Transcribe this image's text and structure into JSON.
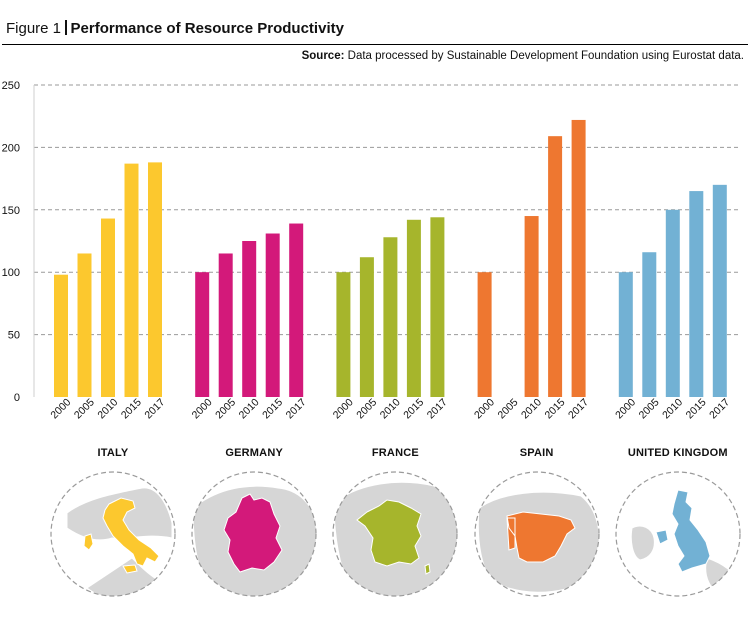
{
  "figure": {
    "label": "Figure 1",
    "title": "Performance of Resource Productivity",
    "source_label": "Source:",
    "source_text": "Data processed by Sustainable Development Foundation using Eurostat data."
  },
  "chart_data": {
    "type": "bar",
    "ylim": [
      0,
      250
    ],
    "yticks": [
      0,
      50,
      100,
      150,
      200,
      250
    ],
    "grid": true,
    "xlabel": "",
    "ylabel": "",
    "groups": [
      {
        "name": "ITALY",
        "color": "#FCC82E",
        "categories": [
          "2000",
          "2005",
          "2010",
          "2015",
          "2017"
        ],
        "values": [
          98,
          115,
          143,
          187,
          188
        ]
      },
      {
        "name": "GERMANY",
        "color": "#D3197A",
        "categories": [
          "2000",
          "2005",
          "2010",
          "2015",
          "2017"
        ],
        "values": [
          100,
          115,
          125,
          131,
          139
        ]
      },
      {
        "name": "FRANCE",
        "color": "#A6B52C",
        "categories": [
          "2000",
          "2005",
          "2010",
          "2015",
          "2017"
        ],
        "values": [
          100,
          112,
          128,
          142,
          144
        ]
      },
      {
        "name": "SPAIN",
        "color": "#EE7730",
        "categories": [
          "2000",
          "2005",
          "2010",
          "2015",
          "2017"
        ],
        "values": [
          100,
          null,
          145,
          209,
          222
        ]
      },
      {
        "name": "UNITED KINGDOM",
        "color": "#72B1D4",
        "categories": [
          "2000",
          "2005",
          "2010",
          "2015",
          "2017"
        ],
        "values": [
          100,
          116,
          150,
          165,
          170
        ]
      }
    ]
  },
  "maps": [
    {
      "name": "ITALY",
      "icon": "italy-map-icon",
      "color": "#FCC82E"
    },
    {
      "name": "GERMANY",
      "icon": "germany-map-icon",
      "color": "#D3197A"
    },
    {
      "name": "FRANCE",
      "icon": "france-map-icon",
      "color": "#A6B52C"
    },
    {
      "name": "SPAIN",
      "icon": "spain-map-icon",
      "color": "#EE7730"
    },
    {
      "name": "UNITED KINGDOM",
      "icon": "uk-map-icon",
      "color": "#72B1D4"
    }
  ]
}
